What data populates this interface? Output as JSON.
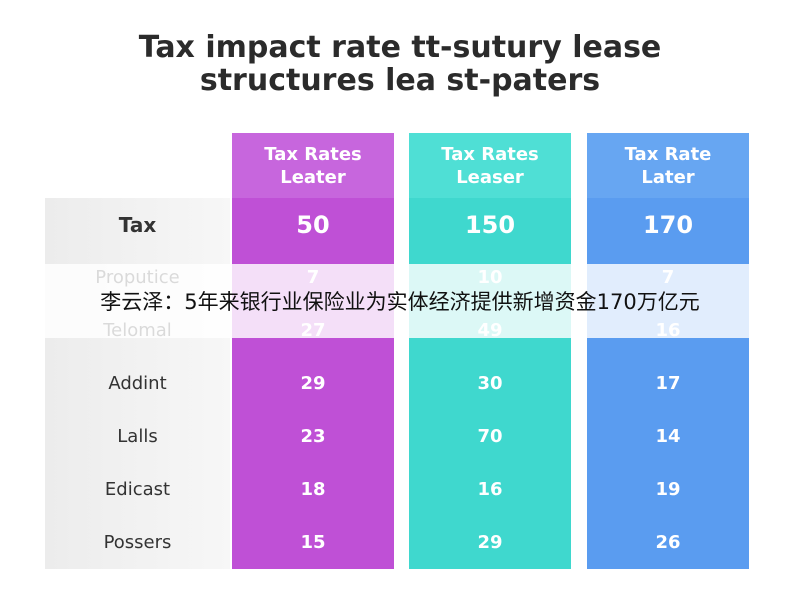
{
  "title_lines": [
    "Tax impact rate tt-sutury lease",
    "structures lea st-paters"
  ],
  "table": {
    "columns": [
      "Tax Rates Leater",
      "Tax Rates Leaser",
      "Tax Rate Later"
    ],
    "rows": [
      [
        "Tax",
        50,
        150,
        170
      ],
      [
        "Proputice",
        7,
        10,
        7
      ],
      [
        "Telomal",
        27,
        49,
        16
      ],
      [
        "Addint",
        29,
        30,
        17
      ],
      [
        "Lalls",
        23,
        70,
        14
      ],
      [
        "Edicast",
        18,
        16,
        19
      ],
      [
        "Possers",
        15,
        29,
        26
      ]
    ]
  },
  "overlay": {
    "text": "李云泽：5年来银行业保险业为实体经济提供新增资金170万亿元"
  }
}
